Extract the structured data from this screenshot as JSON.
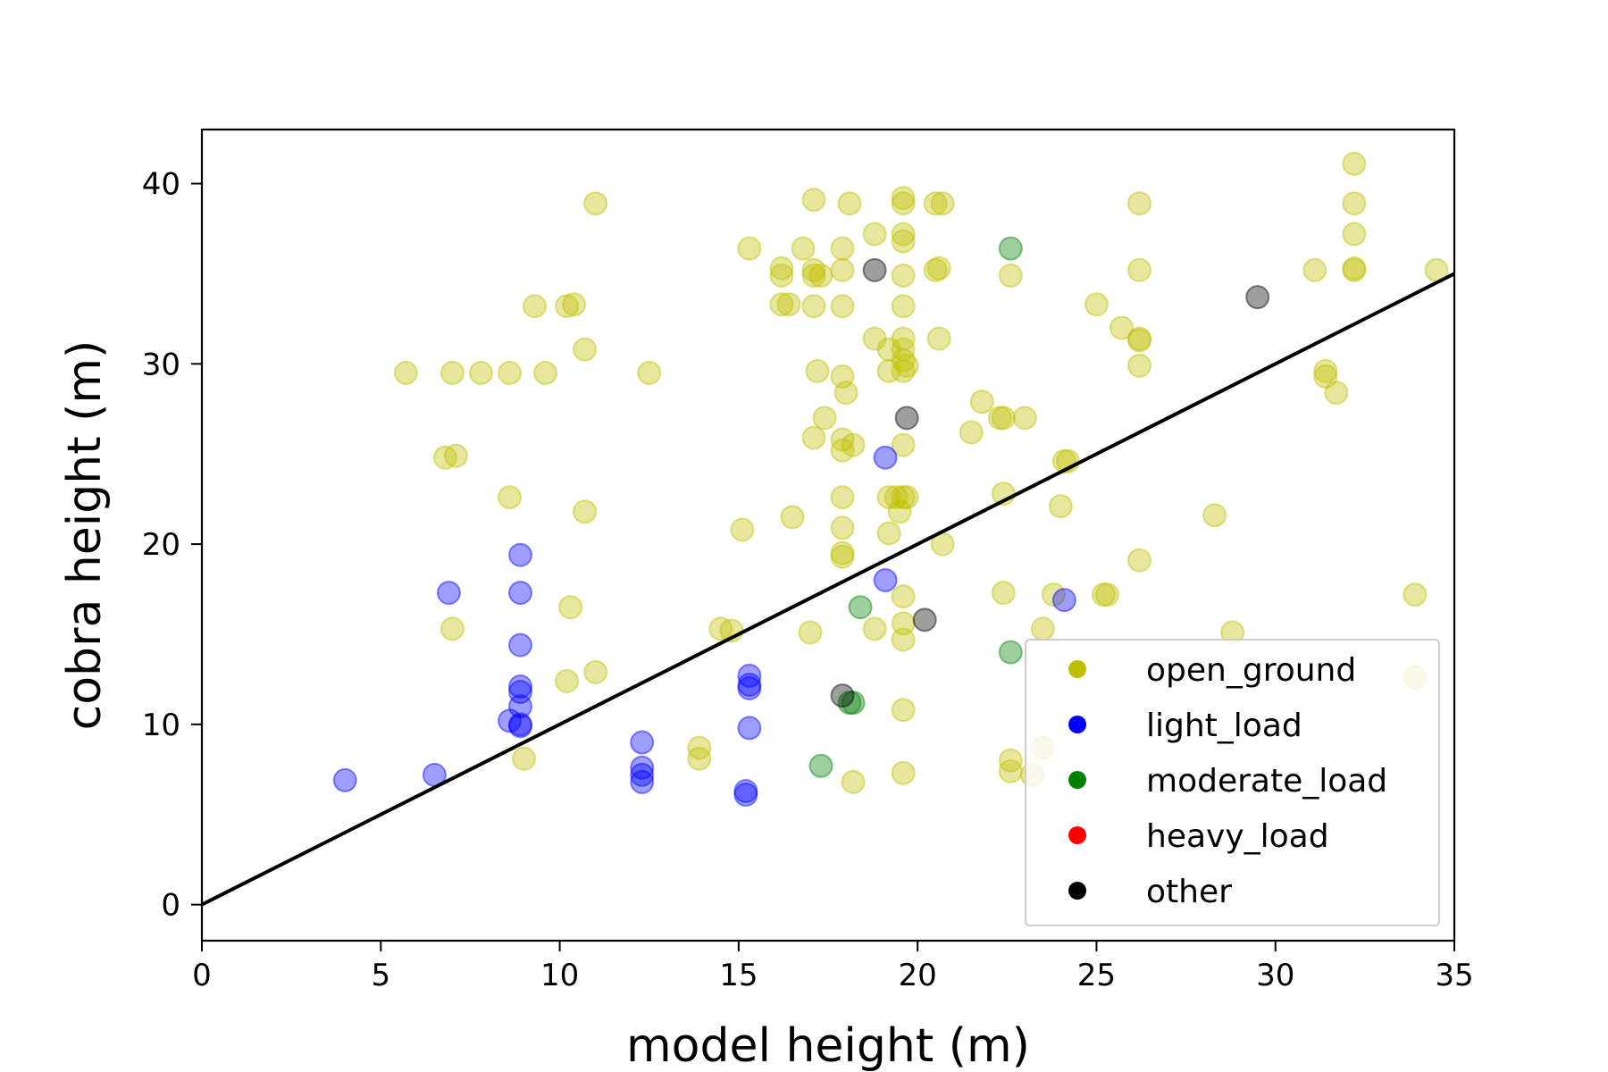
{
  "chart_data": {
    "type": "scatter",
    "title": "",
    "xlabel": "model height (m)",
    "ylabel": "cobra height (m)",
    "xlim": [
      0,
      35
    ],
    "ylim": [
      -2,
      43
    ],
    "xticks": [
      0,
      5,
      10,
      15,
      20,
      25,
      30,
      35
    ],
    "yticks": [
      0,
      10,
      20,
      30,
      40
    ],
    "grid": false,
    "legend_position": "bottom-right",
    "reference_line": {
      "label": "",
      "points": [
        [
          0,
          0
        ],
        [
          35,
          35
        ]
      ],
      "color": "#000000"
    },
    "series": [
      {
        "name": "open_ground",
        "color": "#bfbf00",
        "points": [
          [
            5.7,
            29.5
          ],
          [
            7.0,
            29.5
          ],
          [
            7.8,
            29.5
          ],
          [
            8.6,
            29.5
          ],
          [
            9.6,
            29.5
          ],
          [
            12.5,
            29.5
          ],
          [
            6.8,
            24.8
          ],
          [
            7.1,
            24.9
          ],
          [
            8.6,
            22.6
          ],
          [
            9.3,
            33.2
          ],
          [
            10.2,
            33.2
          ],
          [
            10.4,
            33.3
          ],
          [
            10.7,
            30.8
          ],
          [
            11.0,
            38.9
          ],
          [
            10.7,
            21.8
          ],
          [
            10.3,
            16.5
          ],
          [
            7.0,
            15.3
          ],
          [
            10.2,
            12.4
          ],
          [
            11.0,
            12.9
          ],
          [
            9.0,
            8.1
          ],
          [
            13.9,
            8.7
          ],
          [
            13.9,
            8.1
          ],
          [
            14.5,
            15.3
          ],
          [
            14.8,
            15.2
          ],
          [
            15.1,
            20.8
          ],
          [
            15.3,
            36.4
          ],
          [
            16.2,
            34.9
          ],
          [
            16.2,
            35.3
          ],
          [
            16.2,
            33.3
          ],
          [
            16.4,
            33.3
          ],
          [
            16.5,
            21.5
          ],
          [
            16.8,
            36.4
          ],
          [
            17.1,
            39.1
          ],
          [
            17.1,
            35.2
          ],
          [
            17.1,
            34.9
          ],
          [
            17.1,
            33.2
          ],
          [
            17.2,
            29.6
          ],
          [
            17.4,
            27.0
          ],
          [
            17.1,
            25.9
          ],
          [
            17.0,
            15.1
          ],
          [
            17.3,
            34.9
          ],
          [
            17.9,
            36.4
          ],
          [
            17.9,
            35.2
          ],
          [
            17.9,
            33.2
          ],
          [
            17.9,
            29.3
          ],
          [
            18.0,
            28.4
          ],
          [
            17.9,
            25.8
          ],
          [
            17.9,
            25.2
          ],
          [
            18.2,
            25.5
          ],
          [
            17.9,
            22.6
          ],
          [
            17.9,
            20.9
          ],
          [
            17.9,
            19.5
          ],
          [
            17.9,
            19.3
          ],
          [
            18.1,
            38.9
          ],
          [
            18.2,
            6.8
          ],
          [
            18.8,
            37.2
          ],
          [
            18.8,
            31.4
          ],
          [
            18.8,
            15.3
          ],
          [
            19.2,
            30.8
          ],
          [
            19.2,
            29.6
          ],
          [
            19.2,
            22.6
          ],
          [
            19.2,
            20.6
          ],
          [
            19.4,
            22.6
          ],
          [
            19.5,
            21.8
          ],
          [
            19.6,
            39.2
          ],
          [
            19.6,
            38.9
          ],
          [
            19.6,
            37.2
          ],
          [
            19.6,
            36.8
          ],
          [
            19.6,
            34.9
          ],
          [
            19.6,
            33.2
          ],
          [
            19.6,
            31.4
          ],
          [
            19.6,
            30.8
          ],
          [
            19.6,
            30.2
          ],
          [
            19.6,
            29.6
          ],
          [
            19.7,
            29.9
          ],
          [
            19.6,
            25.5
          ],
          [
            19.6,
            22.6
          ],
          [
            19.7,
            22.6
          ],
          [
            19.6,
            17.1
          ],
          [
            19.6,
            15.6
          ],
          [
            19.6,
            14.7
          ],
          [
            19.6,
            10.8
          ],
          [
            19.6,
            7.3
          ],
          [
            20.5,
            38.9
          ],
          [
            20.7,
            38.9
          ],
          [
            20.6,
            35.3
          ],
          [
            20.5,
            35.2
          ],
          [
            20.6,
            31.4
          ],
          [
            20.7,
            20.0
          ],
          [
            21.5,
            26.2
          ],
          [
            21.8,
            27.9
          ],
          [
            22.3,
            27.0
          ],
          [
            22.4,
            27.0
          ],
          [
            22.4,
            22.8
          ],
          [
            22.4,
            17.3
          ],
          [
            22.6,
            34.9
          ],
          [
            23.0,
            27.0
          ],
          [
            22.6,
            8.0
          ],
          [
            22.6,
            7.4
          ],
          [
            23.5,
            15.3
          ],
          [
            23.8,
            17.2
          ],
          [
            23.2,
            7.2
          ],
          [
            23.5,
            8.7
          ],
          [
            24.0,
            22.1
          ],
          [
            24.1,
            24.6
          ],
          [
            24.2,
            24.6
          ],
          [
            25.0,
            33.3
          ],
          [
            25.7,
            32.0
          ],
          [
            25.2,
            17.2
          ],
          [
            25.3,
            17.2
          ],
          [
            26.2,
            38.9
          ],
          [
            26.2,
            35.2
          ],
          [
            26.2,
            31.4
          ],
          [
            26.2,
            31.3
          ],
          [
            26.2,
            29.9
          ],
          [
            26.2,
            19.1
          ],
          [
            28.3,
            21.6
          ],
          [
            28.8,
            15.1
          ],
          [
            31.1,
            35.2
          ],
          [
            31.4,
            29.6
          ],
          [
            31.4,
            29.3
          ],
          [
            31.7,
            28.4
          ],
          [
            32.2,
            41.1
          ],
          [
            32.2,
            38.9
          ],
          [
            32.2,
            37.2
          ],
          [
            32.2,
            35.2
          ],
          [
            32.2,
            35.3
          ],
          [
            34.5,
            35.2
          ],
          [
            33.9,
            17.2
          ],
          [
            33.9,
            12.6
          ]
        ]
      },
      {
        "name": "light_load",
        "color": "#0000ff",
        "points": [
          [
            4.0,
            6.9
          ],
          [
            6.5,
            7.2
          ],
          [
            6.9,
            17.3
          ],
          [
            8.6,
            10.2
          ],
          [
            8.9,
            19.4
          ],
          [
            8.9,
            17.3
          ],
          [
            8.9,
            14.4
          ],
          [
            8.9,
            12.1
          ],
          [
            8.9,
            11.8
          ],
          [
            8.9,
            11.0
          ],
          [
            8.9,
            10.0
          ],
          [
            8.9,
            9.9
          ],
          [
            12.3,
            9.0
          ],
          [
            12.3,
            7.6
          ],
          [
            12.3,
            7.2
          ],
          [
            12.3,
            6.8
          ],
          [
            15.2,
            6.3
          ],
          [
            15.2,
            6.1
          ],
          [
            15.3,
            12.7
          ],
          [
            15.3,
            12.2
          ],
          [
            15.3,
            12.0
          ],
          [
            15.3,
            9.8
          ],
          [
            19.1,
            24.8
          ],
          [
            19.1,
            18.0
          ],
          [
            24.1,
            16.9
          ]
        ]
      },
      {
        "name": "moderate_load",
        "color": "#008000",
        "points": [
          [
            22.6,
            36.4
          ],
          [
            18.4,
            16.5
          ],
          [
            22.6,
            14.0
          ],
          [
            18.1,
            11.2
          ],
          [
            18.2,
            11.2
          ],
          [
            17.3,
            7.7
          ]
        ]
      },
      {
        "name": "heavy_load",
        "color": "#ff0000",
        "points": []
      },
      {
        "name": "other",
        "color": "#000000",
        "points": [
          [
            18.8,
            35.2
          ],
          [
            29.5,
            33.7
          ],
          [
            19.7,
            27.0
          ],
          [
            20.2,
            15.8
          ],
          [
            17.9,
            11.6
          ]
        ]
      }
    ]
  }
}
